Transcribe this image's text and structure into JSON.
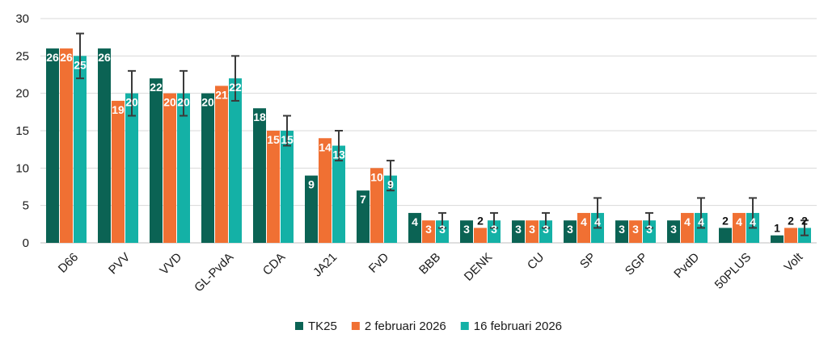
{
  "chart_data": {
    "type": "bar",
    "title": "",
    "xlabel": "",
    "ylabel": "",
    "ylim": [
      0,
      30
    ],
    "yticks": [
      0,
      5,
      10,
      15,
      20,
      25,
      30
    ],
    "grid": true,
    "legend_position": "bottom",
    "categories": [
      "D66",
      "PVV",
      "VVD",
      "GL-PvdA",
      "CDA",
      "JA21",
      "FvD",
      "BBB",
      "DENK",
      "CU",
      "SP",
      "SGP",
      "PvdD",
      "50PLUS",
      "Volt"
    ],
    "series": [
      {
        "name": "TK25",
        "color": "#0B6354",
        "values": [
          26,
          26,
          22,
          20,
          18,
          9,
          7,
          4,
          3,
          3,
          3,
          3,
          3,
          2,
          1
        ]
      },
      {
        "name": "2 februari 2026",
        "color": "#F07033",
        "values": [
          26,
          19,
          20,
          21,
          15,
          14,
          10,
          3,
          2,
          3,
          4,
          3,
          4,
          4,
          2
        ]
      },
      {
        "name": "16 februari 2026",
        "color": "#14B1A6",
        "values": [
          25,
          20,
          20,
          22,
          15,
          13,
          9,
          3,
          3,
          3,
          4,
          3,
          4,
          4,
          2
        ],
        "error_low": [
          22,
          17,
          17,
          19,
          13,
          11,
          7,
          2,
          2,
          2,
          2,
          2,
          2,
          2,
          1
        ],
        "error_high": [
          28,
          23,
          23,
          25,
          17,
          15,
          11,
          4,
          4,
          4,
          6,
          4,
          6,
          6,
          3
        ]
      }
    ]
  }
}
